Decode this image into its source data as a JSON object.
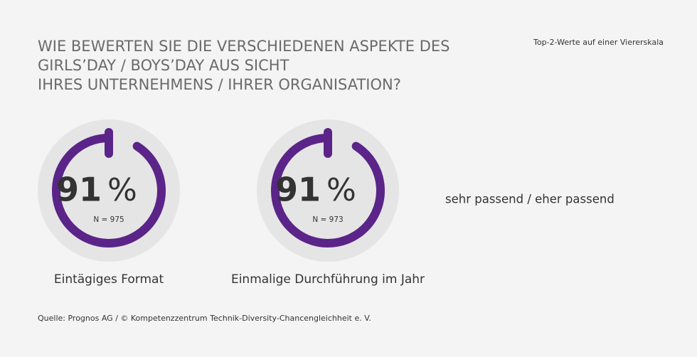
{
  "title": [
    "WIE BEWERTEN SIE DIE VERSCHIEDENEN ASPEKTE DES",
    "GIRLS’DAY / BOYS’DAY AUS SICHT",
    "IHRES UNTERNEHMENS / IHRER ORGANISATION?"
  ],
  "note": "Top-2-Werte auf einer Viererskala",
  "legend_label": "sehr passend / eher passend",
  "source": "Quelle: Prognos AG / © Kompetenzzentrum Technik-Diversity-Chancengleichheit e. V.",
  "chart_data": [
    {
      "type": "gauge",
      "value": 91,
      "unit": "%",
      "n_label": "N = 975",
      "label": "Eintägiges Format",
      "color": "#5b2489",
      "ylim": [
        0,
        100
      ]
    },
    {
      "type": "gauge",
      "value": 91,
      "unit": "%",
      "n_label": "N = 973",
      "label": "Einmalige Durchführung im Jahr",
      "color": "#5b2489",
      "ylim": [
        0,
        100
      ]
    }
  ]
}
